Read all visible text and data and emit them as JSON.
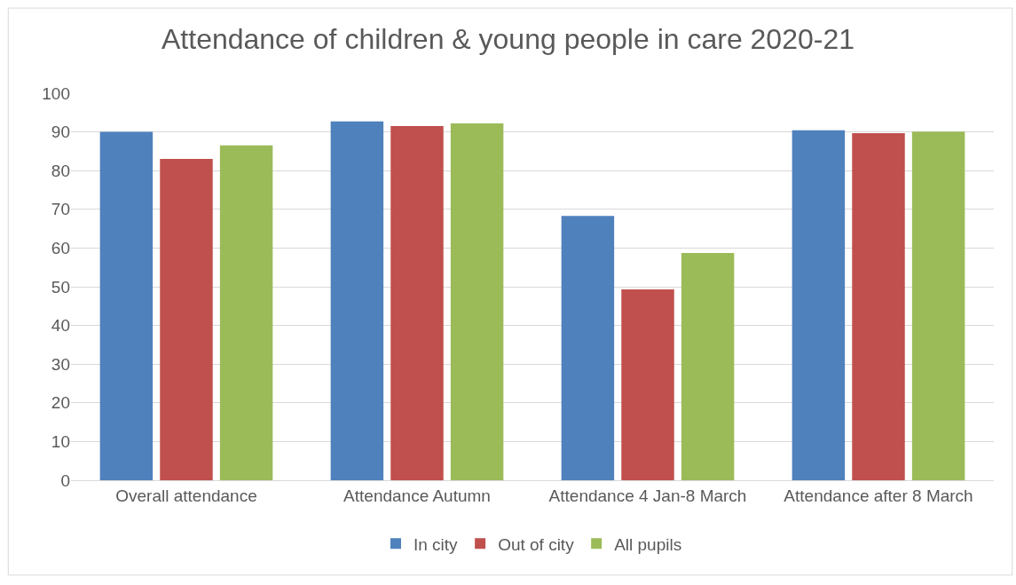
{
  "chart_data": {
    "type": "bar",
    "title": "Attendance of children & young people in care 2020-21",
    "categories": [
      "Overall attendance",
      "Attendance Autumn",
      "Attendance 4 Jan-8 March",
      "Attendance after 8 March"
    ],
    "series": [
      {
        "name": "In city",
        "color": "#4f81bd",
        "values": [
          90,
          92.7,
          68.3,
          90.4
        ]
      },
      {
        "name": "Out of city",
        "color": "#c0504d",
        "values": [
          83,
          91.5,
          49.3,
          89.7
        ]
      },
      {
        "name": "All pupils",
        "color": "#9bbb59",
        "values": [
          86.5,
          92.2,
          58.7,
          90.1
        ]
      }
    ],
    "ylim": [
      0,
      100
    ],
    "yticks": [
      0,
      10,
      20,
      30,
      40,
      50,
      60,
      70,
      80,
      90,
      100
    ],
    "grid": "y",
    "legend": "bottom"
  }
}
